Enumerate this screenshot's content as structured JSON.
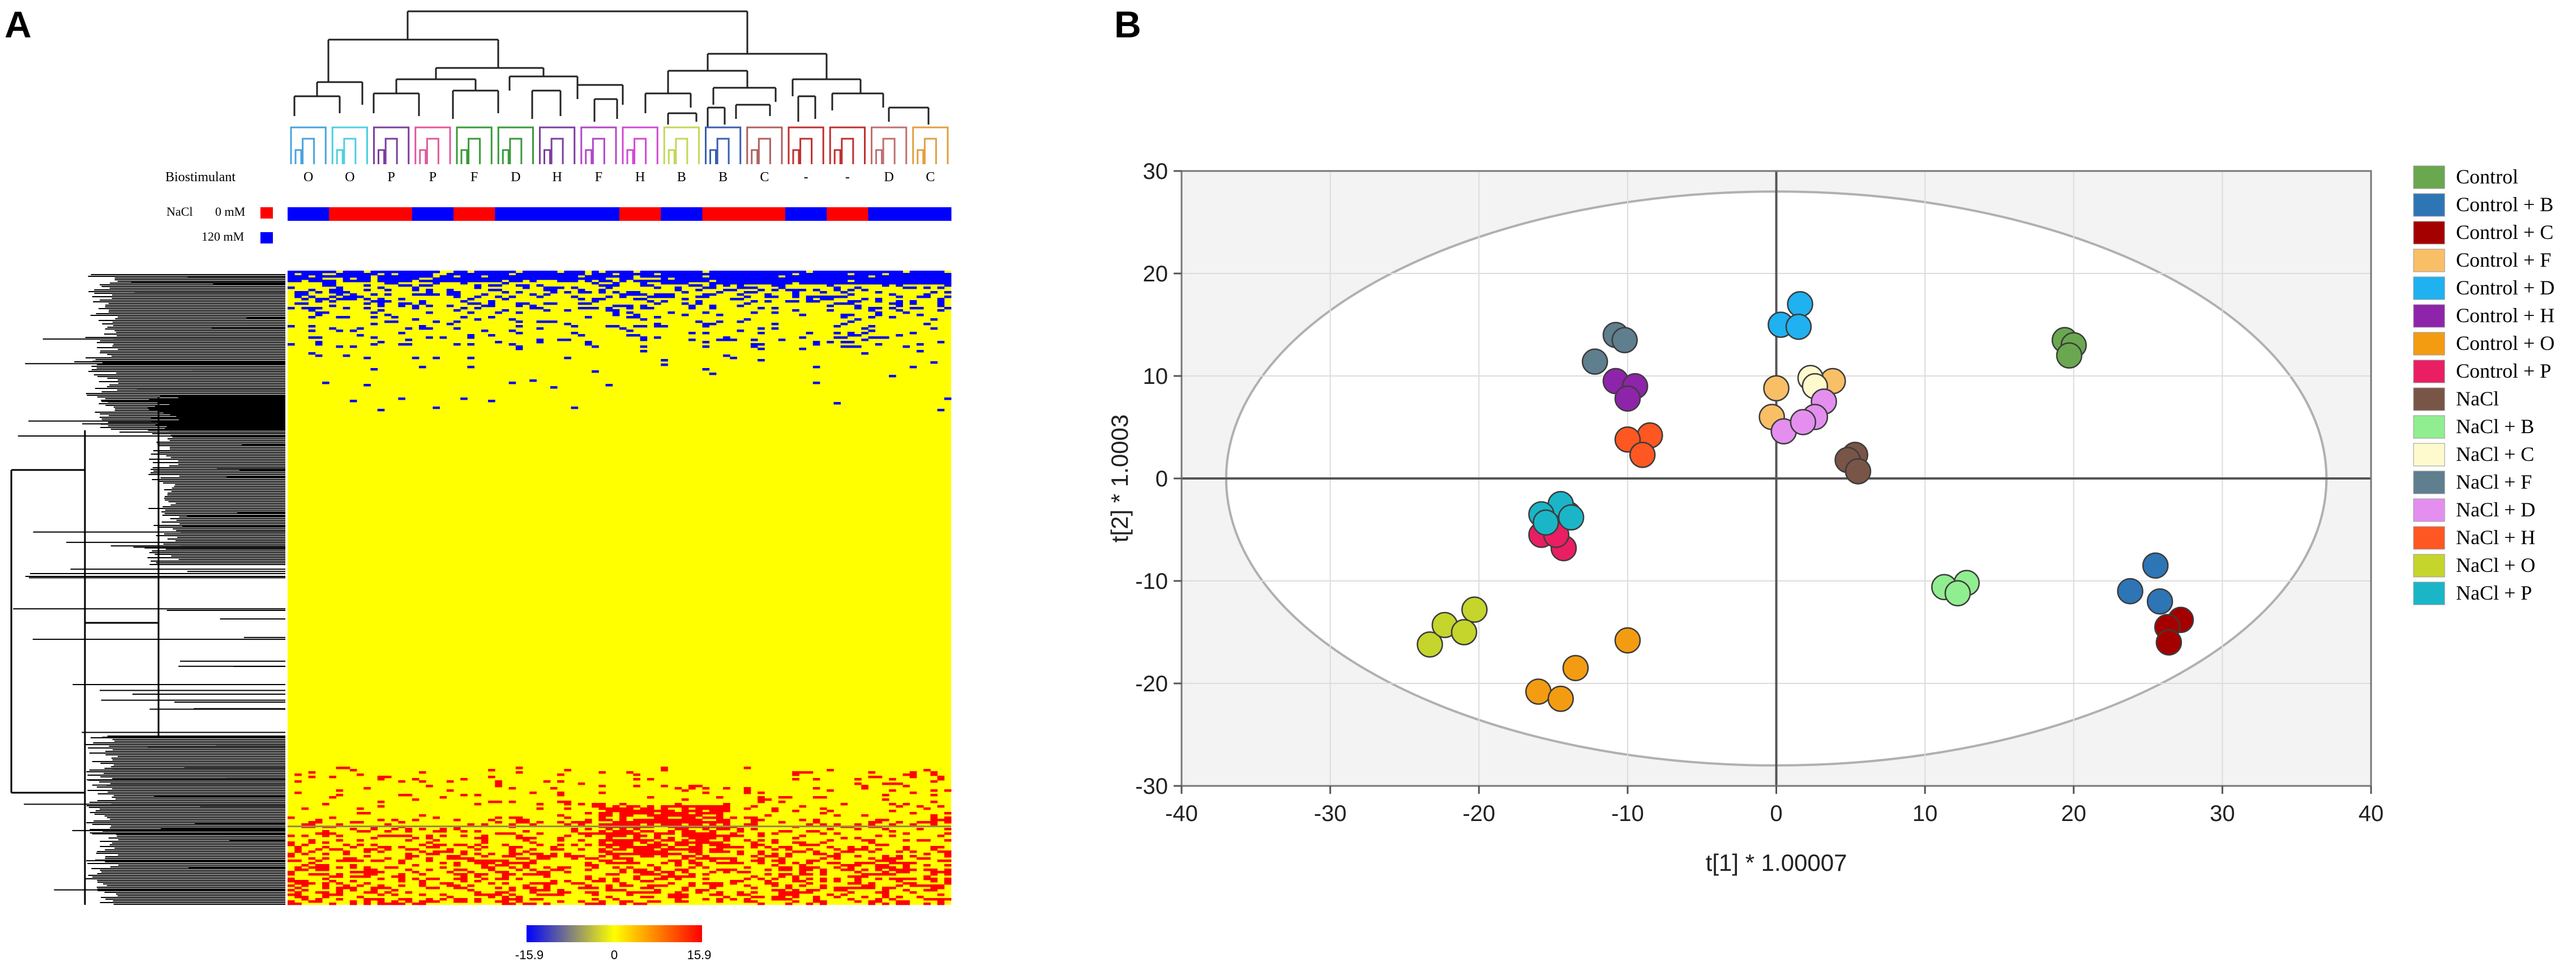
{
  "panels": {
    "a_label": "A",
    "b_label": "B"
  },
  "heatmap": {
    "biostimulant_label": "Biostimulant",
    "nacl_label": "NaCl",
    "nacl_levels": [
      {
        "label": "0 mM",
        "color": "#ff0000"
      },
      {
        "label": "120 mM",
        "color": "#0000ff"
      }
    ],
    "column_groups": [
      "O",
      "O",
      "P",
      "P",
      "F",
      "D",
      "H",
      "F",
      "H",
      "B",
      "B",
      "C",
      "-",
      "-",
      "D",
      "C"
    ],
    "column_nacl": [
      "120 mM",
      "0 mM",
      "0 mM",
      "120 mM",
      "0 mM",
      "120 mM",
      "120 mM",
      "120 mM",
      "0 mM",
      "120 mM",
      "0 mM",
      "0 mM",
      "120 mM",
      "0 mM",
      "120 mM",
      "120 mM"
    ],
    "dendro_group_colors": [
      "#4aa3df",
      "#4dd0e1",
      "#7b3fa0",
      "#e05a9c",
      "#3a9a3a",
      "#3a9a3a",
      "#7b3fa0",
      "#b347c9",
      "#d04bd0",
      "#c2d85a",
      "#3a5fb0",
      "#b06060",
      "#c03030",
      "#c03030",
      "#c07070",
      "#e0a040"
    ],
    "scale": {
      "min_label": "-15.9",
      "mid_label": "0",
      "max_label": "15.9",
      "colors": [
        "#0000ff",
        "#ffff00",
        "#ff0000"
      ]
    }
  },
  "chart_data": {
    "type": "scatter",
    "title": "",
    "xlabel": "t[1] * 1.00007",
    "ylabel": "t[2] * 1.0003",
    "xlim": [
      -40,
      40
    ],
    "ylim": [
      -30,
      30
    ],
    "xticks": [
      "-40",
      "-30",
      "-20",
      "-10",
      "0",
      "10",
      "20",
      "30",
      "40"
    ],
    "yticks": [
      "30",
      "20",
      "10",
      "0",
      "-10",
      "-20",
      "-30"
    ],
    "grid": true,
    "ellipse": {
      "rx": 37,
      "ry": 28,
      "cx": 0,
      "cy": 0
    },
    "legend_position": "right",
    "series": [
      {
        "name": "Control",
        "color": "#6aa84f",
        "points": [
          [
            19.4,
            13.5
          ],
          [
            20.0,
            13.0
          ],
          [
            19.7,
            12.0
          ]
        ]
      },
      {
        "name": "Control + B",
        "color": "#2e75b6",
        "points": [
          [
            25.5,
            -8.5
          ],
          [
            23.8,
            -11.0
          ],
          [
            25.8,
            -12.0
          ]
        ]
      },
      {
        "name": "Control + C",
        "color": "#a50000",
        "points": [
          [
            27.2,
            -13.8
          ],
          [
            26.3,
            -14.5
          ],
          [
            26.4,
            -16.0
          ]
        ]
      },
      {
        "name": "Control + F",
        "color": "#f9bf67",
        "points": [
          [
            -0.3,
            6.0
          ],
          [
            0.0,
            8.8
          ],
          [
            3.8,
            9.5
          ]
        ]
      },
      {
        "name": "Control + D",
        "color": "#1fb1f0",
        "points": [
          [
            1.6,
            17.0
          ],
          [
            0.3,
            15.0
          ],
          [
            1.5,
            14.8
          ]
        ]
      },
      {
        "name": "Control + H",
        "color": "#8e24aa",
        "points": [
          [
            -10.8,
            9.5
          ],
          [
            -9.5,
            9.0
          ],
          [
            -10.0,
            7.8
          ]
        ]
      },
      {
        "name": "Control + O",
        "color": "#f39c12",
        "points": [
          [
            -13.5,
            -18.5
          ],
          [
            -16.0,
            -20.8
          ],
          [
            -14.5,
            -21.5
          ],
          [
            -10.0,
            -15.8
          ]
        ]
      },
      {
        "name": "Control + P",
        "color": "#e91e63",
        "points": [
          [
            -14.0,
            -3.5
          ],
          [
            -15.8,
            -5.5
          ],
          [
            -14.3,
            -6.8
          ],
          [
            -14.8,
            -5.5
          ]
        ]
      },
      {
        "name": "NaCl",
        "color": "#795548",
        "points": [
          [
            5.3,
            2.3
          ],
          [
            4.8,
            1.8
          ],
          [
            5.5,
            0.7
          ]
        ]
      },
      {
        "name": "NaCl + B",
        "color": "#90ee90",
        "points": [
          [
            12.8,
            -10.2
          ],
          [
            11.3,
            -10.6
          ],
          [
            12.2,
            -11.2
          ]
        ]
      },
      {
        "name": "NaCl + C",
        "color": "#fffacd",
        "points": [
          [
            2.3,
            9.8
          ],
          [
            2.6,
            9.0
          ]
        ]
      },
      {
        "name": "NaCl + F",
        "color": "#5f7e8e",
        "points": [
          [
            -10.8,
            14.0
          ],
          [
            -12.2,
            11.4
          ],
          [
            -10.2,
            13.5
          ]
        ]
      },
      {
        "name": "NaCl + D",
        "color": "#e48fef",
        "points": [
          [
            3.2,
            7.5
          ],
          [
            2.6,
            6.0
          ],
          [
            0.5,
            4.6
          ],
          [
            1.8,
            5.5
          ]
        ]
      },
      {
        "name": "NaCl + H",
        "color": "#ff5722",
        "points": [
          [
            -8.5,
            4.2
          ],
          [
            -10.0,
            3.8
          ],
          [
            -9.0,
            2.3
          ]
        ]
      },
      {
        "name": "NaCl + O",
        "color": "#c5d52c",
        "points": [
          [
            -23.3,
            -16.2
          ],
          [
            -22.3,
            -14.3
          ],
          [
            -20.3,
            -12.8
          ],
          [
            -21.0,
            -15.0
          ]
        ]
      },
      {
        "name": "NaCl + P",
        "color": "#1ab6c8",
        "points": [
          [
            -14.5,
            -2.5
          ],
          [
            -15.8,
            -3.5
          ],
          [
            -13.8,
            -3.8
          ],
          [
            -15.5,
            -4.3
          ]
        ]
      }
    ]
  }
}
